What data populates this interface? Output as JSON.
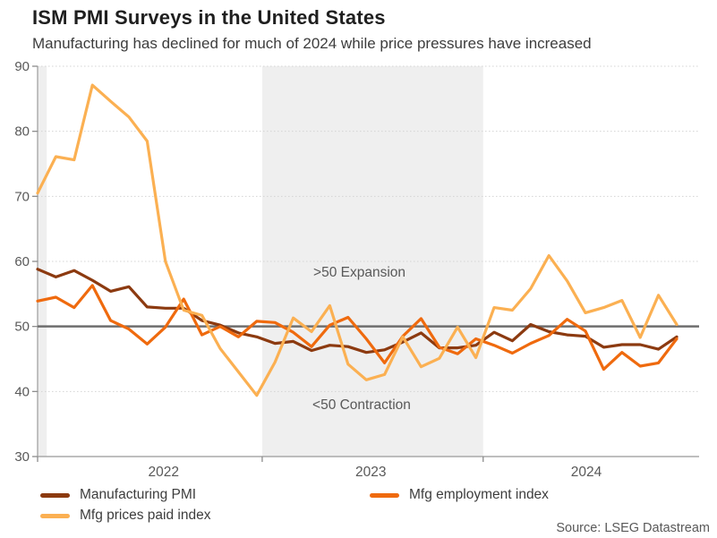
{
  "header": {
    "title": "ISM PMI Surveys in the United States",
    "subtitle": "Manufacturing has declined for much of 2024 while price pressures have increased"
  },
  "source": "Source: LSEG Datastream",
  "legend": {
    "items": [
      {
        "label": "Manufacturing PMI",
        "color": "#8C3A10"
      },
      {
        "label": "Mfg employment index",
        "color": "#EF6A0E"
      },
      {
        "label": "Mfg prices paid index",
        "color": "#FBB052"
      }
    ]
  },
  "chart_data": {
    "type": "line",
    "title": "ISM PMI Surveys in the United States",
    "subtitle": "Manufacturing has declined for much of 2024 while price pressures have increased",
    "xlabel": "",
    "ylabel": "",
    "ylim": [
      30,
      90
    ],
    "y_ticks": [
      30,
      40,
      50,
      60,
      70,
      80,
      90
    ],
    "grid": "dotted-horizontal",
    "legend_position": "bottom",
    "reference_line": {
      "value": 50,
      "color": "#6E6E6E"
    },
    "shaded_bands": [
      {
        "from_month": -0.5,
        "to_month": 0.5,
        "color": "#EFEFEF"
      },
      {
        "from_month": 12.3,
        "to_month": 24.4,
        "color": "#EFEFEF"
      }
    ],
    "x_tick_months": [
      0,
      12.3,
      24.4
    ],
    "year_labels": [
      {
        "label": "2022",
        "center_month": 6.9
      },
      {
        "label": "2023",
        "center_month": 18.25
      },
      {
        "label": "2024",
        "center_month": 30.05
      }
    ],
    "annotations": [
      {
        "text": ">50 Expansion",
        "x_month": 15.1,
        "y_value": 58.2
      },
      {
        "text": "<50 Contraction",
        "x_month": 15.05,
        "y_value": 37.9
      }
    ],
    "x": [
      "Dec-21",
      "Jan-22",
      "Feb-22",
      "Mar-22",
      "Apr-22",
      "May-22",
      "Jun-22",
      "Jul-22",
      "Aug-22",
      "Sep-22",
      "Oct-22",
      "Nov-22",
      "Dec-22",
      "Jan-23",
      "Feb-23",
      "Mar-23",
      "Apr-23",
      "May-23",
      "Jun-23",
      "Jul-23",
      "Aug-23",
      "Sep-23",
      "Oct-23",
      "Nov-23",
      "Dec-23",
      "Jan-24",
      "Feb-24",
      "Mar-24",
      "Apr-24",
      "May-24",
      "Jun-24",
      "Jul-24",
      "Aug-24",
      "Sep-24",
      "Oct-24",
      "Nov-24"
    ],
    "series": [
      {
        "name": "Manufacturing PMI",
        "color": "#8C3A10",
        "values": [
          58.8,
          57.6,
          58.6,
          57.1,
          55.4,
          56.1,
          53.0,
          52.8,
          52.8,
          50.9,
          50.2,
          49.0,
          48.4,
          47.4,
          47.7,
          46.3,
          47.1,
          46.9,
          46.0,
          46.4,
          47.6,
          49.0,
          46.7,
          46.7,
          47.1,
          49.1,
          47.8,
          50.3,
          49.2,
          48.7,
          48.5,
          46.8,
          47.2,
          47.2,
          46.5,
          48.4
        ]
      },
      {
        "name": "Mfg employment index",
        "color": "#EF6A0E",
        "values": [
          53.9,
          54.5,
          52.9,
          56.3,
          50.9,
          49.6,
          47.3,
          49.9,
          54.2,
          48.7,
          50.0,
          48.4,
          50.8,
          50.6,
          49.1,
          46.9,
          50.2,
          51.4,
          48.1,
          44.4,
          48.5,
          51.2,
          46.8,
          45.8,
          48.1,
          47.1,
          45.9,
          47.4,
          48.6,
          51.1,
          49.3,
          43.4,
          46.0,
          43.9,
          44.4,
          48.1
        ]
      },
      {
        "name": "Mfg prices paid index",
        "color": "#FBB052",
        "values": [
          70.5,
          76.1,
          75.6,
          87.1,
          84.6,
          82.2,
          78.5,
          60.0,
          52.5,
          51.7,
          46.6,
          43.0,
          39.4,
          44.5,
          51.3,
          49.2,
          53.2,
          44.2,
          41.8,
          42.6,
          48.4,
          43.8,
          45.1,
          49.9,
          45.2,
          52.9,
          52.5,
          55.8,
          60.9,
          57.0,
          52.1,
          52.9,
          54.0,
          48.3,
          54.8,
          50.3
        ]
      }
    ]
  }
}
